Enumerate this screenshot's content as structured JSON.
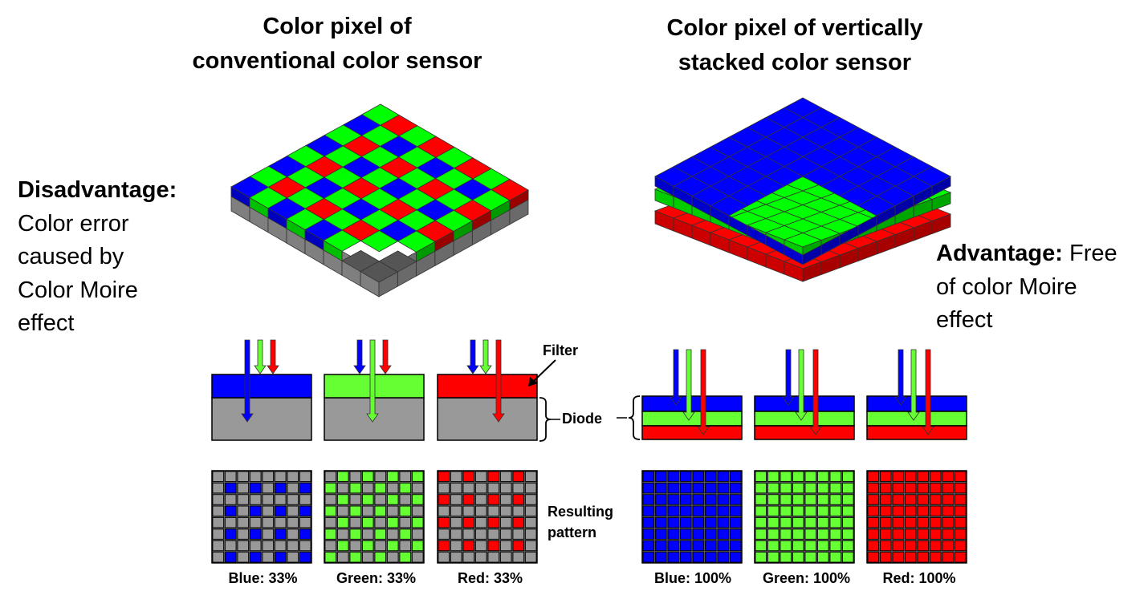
{
  "titles": {
    "conventional_line1": "Color pixel of",
    "conventional_line2": "conventional color sensor",
    "stacked_line1": "Color pixel of vertically",
    "stacked_line2": "stacked color sensor"
  },
  "disadvantage": {
    "label": "Disadvantage:",
    "lines": [
      "Color error",
      "caused by",
      "Color Moire",
      "effect"
    ]
  },
  "advantage": {
    "label": "Advantage:",
    "text_inline": "Free",
    "lines": [
      "of color Moire",
      "effect"
    ]
  },
  "labels": {
    "filter": "Filter",
    "diode": "Diode",
    "resulting_line1": "Resulting",
    "resulting_line2": "pattern"
  },
  "captions": {
    "conventional": [
      "Blue: 33%",
      "Green: 33%",
      "Red: 33%"
    ],
    "stacked": [
      "Blue: 100%",
      "Green: 100%",
      "Red: 100%"
    ]
  },
  "colors": {
    "red": "#ff0000",
    "green": "#00ff00",
    "light_green": "#66ff33",
    "blue": "#0000ff",
    "gray": "#999999",
    "dark_gray": "#777777"
  }
}
